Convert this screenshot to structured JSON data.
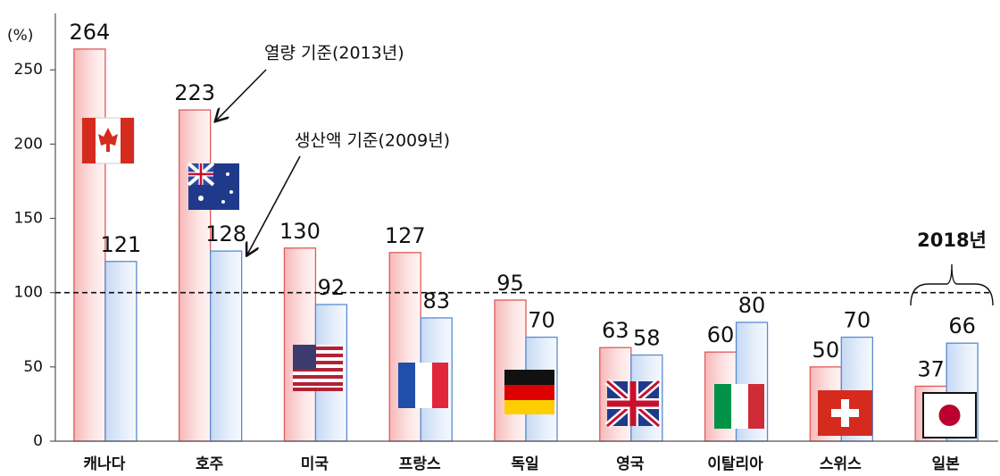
{
  "chart_data": {
    "type": "bar",
    "y_label": "(%)",
    "categories": [
      "캐나다",
      "호주",
      "미국",
      "프랑스",
      "독일",
      "영국",
      "이탈리아",
      "스위스",
      "일본"
    ],
    "series": [
      {
        "name": "열량 기준(2013년)",
        "color": "#e05a5a",
        "values": [
          264,
          223,
          130,
          127,
          95,
          63,
          60,
          50,
          37
        ]
      },
      {
        "name": "생산액 기준(2009년)",
        "color": "#5b8bd0",
        "values": [
          121,
          128,
          92,
          83,
          70,
          58,
          80,
          70,
          66
        ]
      }
    ],
    "ylim": [
      0,
      285
    ],
    "yticks": [
      0,
      50,
      100,
      150,
      200,
      250
    ],
    "reference_line": 100,
    "annotation": "2018년"
  }
}
